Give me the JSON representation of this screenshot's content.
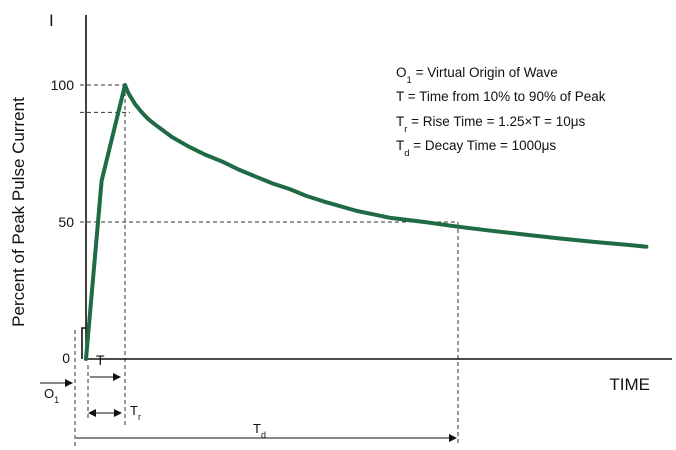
{
  "chart_data": {
    "type": "line",
    "title": "",
    "ylabel": "Percent of Peak Pulse Current",
    "xlabel": "TIME",
    "y_axis_symbol": "I",
    "y_ticks": [
      "0",
      "50",
      "100"
    ],
    "ylim": [
      0,
      100
    ],
    "legend": [
      {
        "main": "O",
        "sub": "1",
        "rest": " = Virtual Origin of Wave"
      },
      {
        "main": "T",
        "sub": "",
        "rest": " = Time from 10% to 90% of Peak"
      },
      {
        "main": "T",
        "sub": "r",
        "rest": " = Rise Time = 1.25×T = 10μs"
      },
      {
        "main": "T",
        "sub": "d",
        "rest": " = Decay Time = 1000μs"
      }
    ],
    "annotations": {
      "o1": {
        "main": "O",
        "sub": "1"
      },
      "t": {
        "main": "T",
        "sub": ""
      },
      "tr": {
        "main": "T",
        "sub": "r"
      },
      "td": {
        "main": "T",
        "sub": "d"
      }
    },
    "series": [
      {
        "color": "#1f6b45",
        "x": [
          0,
          4,
          10,
          20,
          40,
          60,
          80,
          100,
          150,
          200,
          250,
          300,
          350,
          400,
          450,
          500,
          550,
          600,
          700,
          800,
          900,
          1000,
          1100,
          1200,
          1300,
          1400,
          1500,
          1560
        ],
        "y": [
          0,
          65,
          100,
          97,
          93,
          90,
          87.5,
          85.5,
          81,
          77.5,
          74.5,
          72,
          69,
          66.5,
          64,
          62,
          59.5,
          57.5,
          54,
          51.5,
          50,
          48.3,
          46.8,
          45.4,
          44,
          42.8,
          41.7,
          41
        ]
      }
    ],
    "reference_levels": [
      100,
      90,
      50
    ],
    "line_color": "#1f6b45"
  }
}
